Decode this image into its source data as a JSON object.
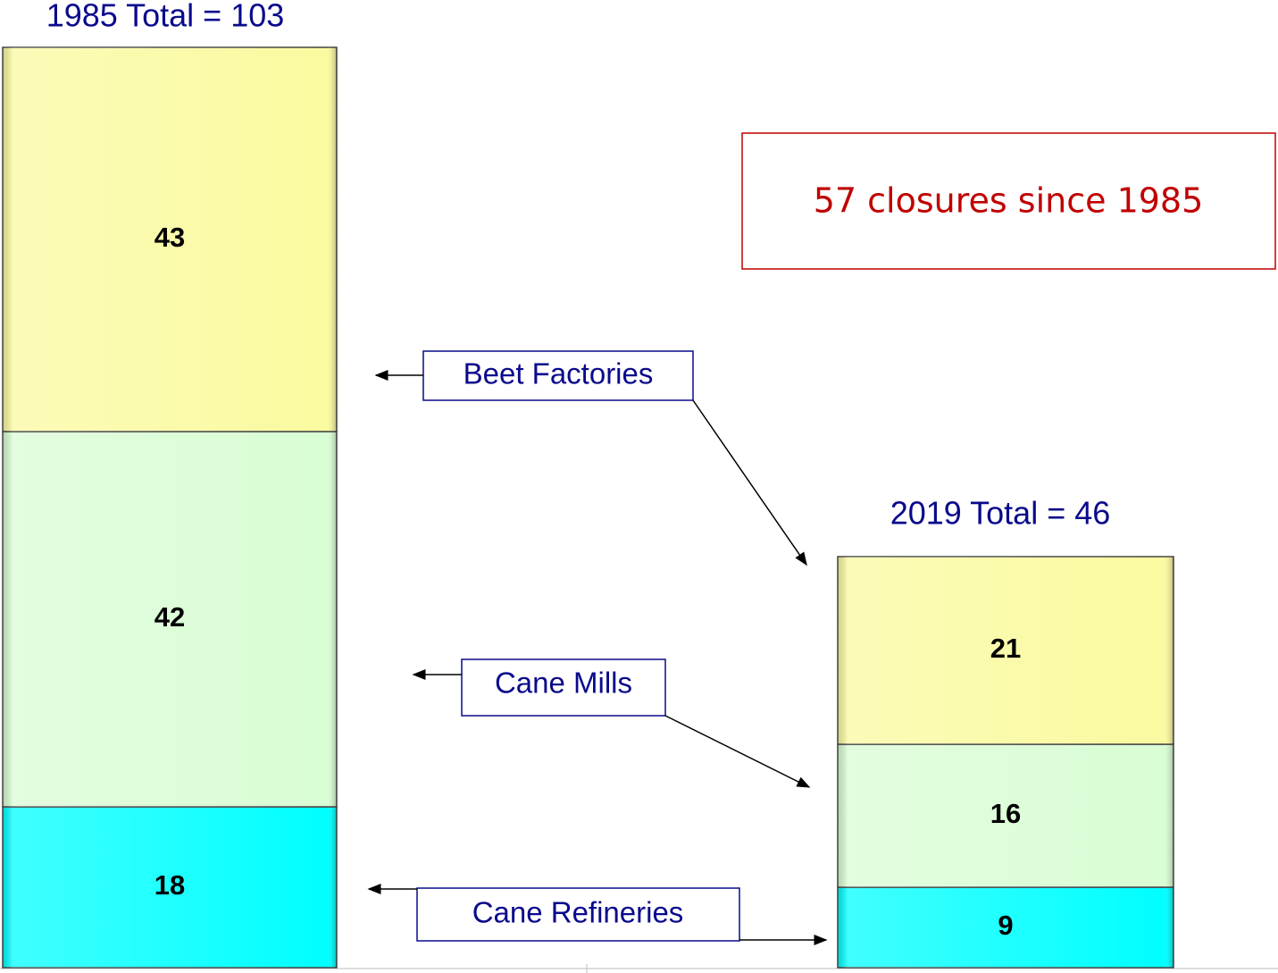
{
  "chart_data": {
    "type": "stacked_bar",
    "categories": [
      "1985 Total = 103",
      "2019 Total = 46"
    ],
    "series": [
      {
        "name": "Cane Refineries",
        "color": "#00ffff",
        "values": [
          18,
          9
        ]
      },
      {
        "name": "Cane Mills",
        "color": "#d9fdd4",
        "values": [
          42,
          16
        ]
      },
      {
        "name": "Beet Factories",
        "color": "#fafaa0",
        "values": [
          43,
          21
        ]
      }
    ],
    "annotation": "57 closures since 1985"
  }
}
